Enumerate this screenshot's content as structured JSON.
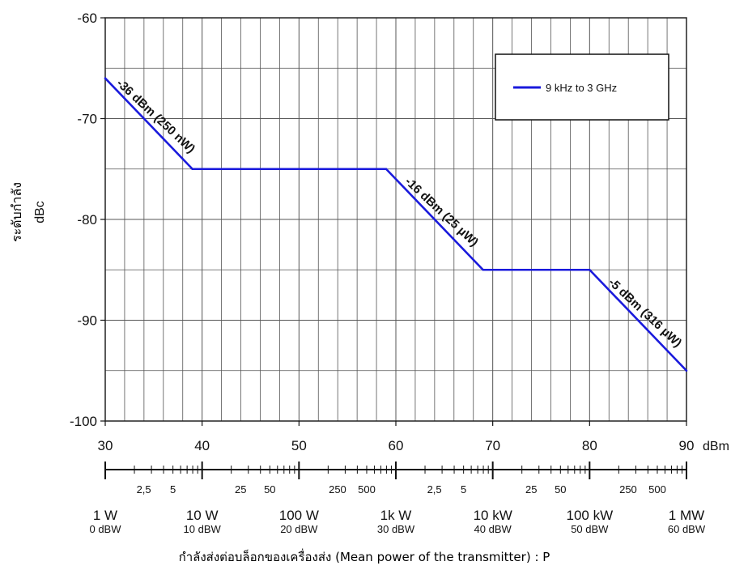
{
  "chart_data": {
    "type": "line",
    "ylabel_thai": "ระดับกำลัง",
    "ylabel": "dBc",
    "xlabel_thai": "กำลังส่งต่อบล็อกของเครื่องส่ง (Mean power of the transmitter) : P",
    "x_unit": "dBm",
    "xlim": [
      30,
      90
    ],
    "ylim": [
      -100,
      -60
    ],
    "x_ticks": [
      {
        "value": 30,
        "label": "30"
      },
      {
        "value": 40,
        "label": "40"
      },
      {
        "value": 50,
        "label": "50"
      },
      {
        "value": 60,
        "label": "60"
      },
      {
        "value": 70,
        "label": "70"
      },
      {
        "value": 80,
        "label": "80"
      },
      {
        "value": 90,
        "label": "90"
      }
    ],
    "y_ticks": [
      {
        "value": -60,
        "label": "-60"
      },
      {
        "value": -70,
        "label": "-70"
      },
      {
        "value": -80,
        "label": "-80"
      },
      {
        "value": -90,
        "label": "-90"
      },
      {
        "value": -100,
        "label": "-100"
      }
    ],
    "grid": true,
    "legend_position": "top-right",
    "series": [
      {
        "name": "9 kHz to 3 GHz",
        "color": "#1a1adc",
        "x": [
          30,
          39,
          59,
          69,
          80,
          90
        ],
        "y": [
          -66,
          -75,
          -75,
          -85,
          -85,
          -95
        ]
      }
    ],
    "annotations": [
      {
        "text": "-36 dBm (250 nW)",
        "x": 34.5,
        "y": -70.5
      },
      {
        "text": "-16 dBm (25 µW)",
        "x": 64,
        "y": -80
      },
      {
        "text": "-5 dBm (316 µW)",
        "x": 85,
        "y": -90
      }
    ],
    "power_scale": {
      "minor_labels": [
        {
          "dbm": 33.98,
          "label": "2,5"
        },
        {
          "dbm": 36.99,
          "label": "5"
        },
        {
          "dbm": 43.98,
          "label": "25"
        },
        {
          "dbm": 46.99,
          "label": "50"
        },
        {
          "dbm": 53.98,
          "label": "250"
        },
        {
          "dbm": 56.99,
          "label": "500"
        },
        {
          "dbm": 63.98,
          "label": "2,5"
        },
        {
          "dbm": 66.99,
          "label": "5"
        },
        {
          "dbm": 73.98,
          "label": "25"
        },
        {
          "dbm": 76.99,
          "label": "50"
        },
        {
          "dbm": 83.98,
          "label": "250"
        },
        {
          "dbm": 86.99,
          "label": "500"
        }
      ],
      "major": [
        {
          "dbm": 30,
          "watts": "1 W",
          "dbw": "0 dBW"
        },
        {
          "dbm": 40,
          "watts": "10 W",
          "dbw": "10 dBW"
        },
        {
          "dbm": 50,
          "watts": "100 W",
          "dbw": "20 dBW"
        },
        {
          "dbm": 60,
          "watts": "1k W",
          "dbw": "30 dBW"
        },
        {
          "dbm": 70,
          "watts": "10 kW",
          "dbw": "40 dBW"
        },
        {
          "dbm": 80,
          "watts": "100 kW",
          "dbw": "50 dBW"
        },
        {
          "dbm": 90,
          "watts": "1 MW",
          "dbw": "60 dBW"
        }
      ]
    }
  }
}
